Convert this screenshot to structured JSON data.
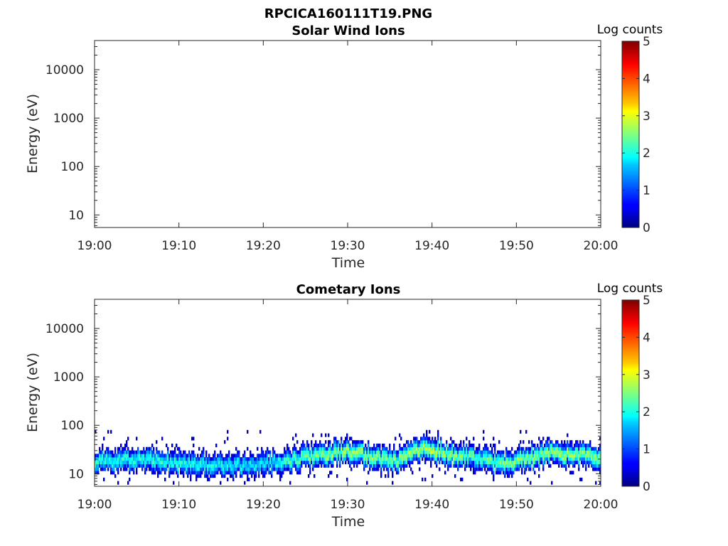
{
  "figure_title": "RPCICA160111T19.PNG",
  "chart_data": [
    {
      "type": "heatmap",
      "title": "Solar Wind Ions",
      "xlabel": "Time",
      "ylabel": "Energy (eV)",
      "x_ticks": [
        "19:00",
        "19:10",
        "19:20",
        "19:30",
        "19:40",
        "19:50",
        "20:00"
      ],
      "x_range_minutes": [
        0,
        60
      ],
      "y_scale": "log",
      "y_ticks": [
        10,
        100,
        1000,
        10000
      ],
      "y_tick_labels": [
        "10",
        "100",
        "1000",
        "10000"
      ],
      "y_range": [
        5.5,
        40000
      ],
      "colorbar": {
        "label": "Log counts",
        "range": [
          0,
          5
        ],
        "ticks": [
          "0",
          "1",
          "2",
          "3",
          "4",
          "5"
        ],
        "colormap": "jet"
      },
      "data_description": "empty",
      "bands": []
    },
    {
      "type": "heatmap",
      "title": "Cometary Ions",
      "xlabel": "Time",
      "ylabel": "Energy (eV)",
      "x_ticks": [
        "19:00",
        "19:10",
        "19:20",
        "19:30",
        "19:40",
        "19:50",
        "20:00"
      ],
      "x_range_minutes": [
        0,
        60
      ],
      "y_scale": "log",
      "y_ticks": [
        10,
        100,
        1000,
        10000
      ],
      "y_tick_labels": [
        "10",
        "100",
        "1000",
        "10000"
      ],
      "y_range": [
        5.5,
        40000
      ],
      "colorbar": {
        "label": "Log counts",
        "range": [
          0,
          5
        ],
        "ticks": [
          "0",
          "1",
          "2",
          "3",
          "4",
          "5"
        ],
        "colormap": "jet"
      },
      "energy_span_eV": [
        6,
        80
      ],
      "peak_band": [
        {
          "t": 0,
          "e": 18
        },
        {
          "t": 5,
          "e": 20
        },
        {
          "t": 10,
          "e": 17
        },
        {
          "t": 15,
          "e": 15
        },
        {
          "t": 20,
          "e": 16
        },
        {
          "t": 25,
          "e": 22
        },
        {
          "t": 28,
          "e": 26
        },
        {
          "t": 30,
          "e": 30
        },
        {
          "t": 33,
          "e": 22
        },
        {
          "t": 36,
          "e": 18
        },
        {
          "t": 39,
          "e": 35
        },
        {
          "t": 42,
          "e": 25
        },
        {
          "t": 45,
          "e": 22
        },
        {
          "t": 48,
          "e": 16
        },
        {
          "t": 51,
          "e": 20
        },
        {
          "t": 54,
          "e": 28
        },
        {
          "t": 57,
          "e": 25
        },
        {
          "t": 60,
          "e": 22
        }
      ],
      "peak_log_counts": [
        {
          "t": 0,
          "v": 2.0
        },
        {
          "t": 10,
          "v": 2.0
        },
        {
          "t": 20,
          "v": 1.7
        },
        {
          "t": 25,
          "v": 2.4
        },
        {
          "t": 30,
          "v": 2.7
        },
        {
          "t": 35,
          "v": 2.5
        },
        {
          "t": 40,
          "v": 2.8
        },
        {
          "t": 45,
          "v": 2.3
        },
        {
          "t": 50,
          "v": 2.5
        },
        {
          "t": 55,
          "v": 2.6
        },
        {
          "t": 60,
          "v": 2.5
        }
      ]
    }
  ]
}
